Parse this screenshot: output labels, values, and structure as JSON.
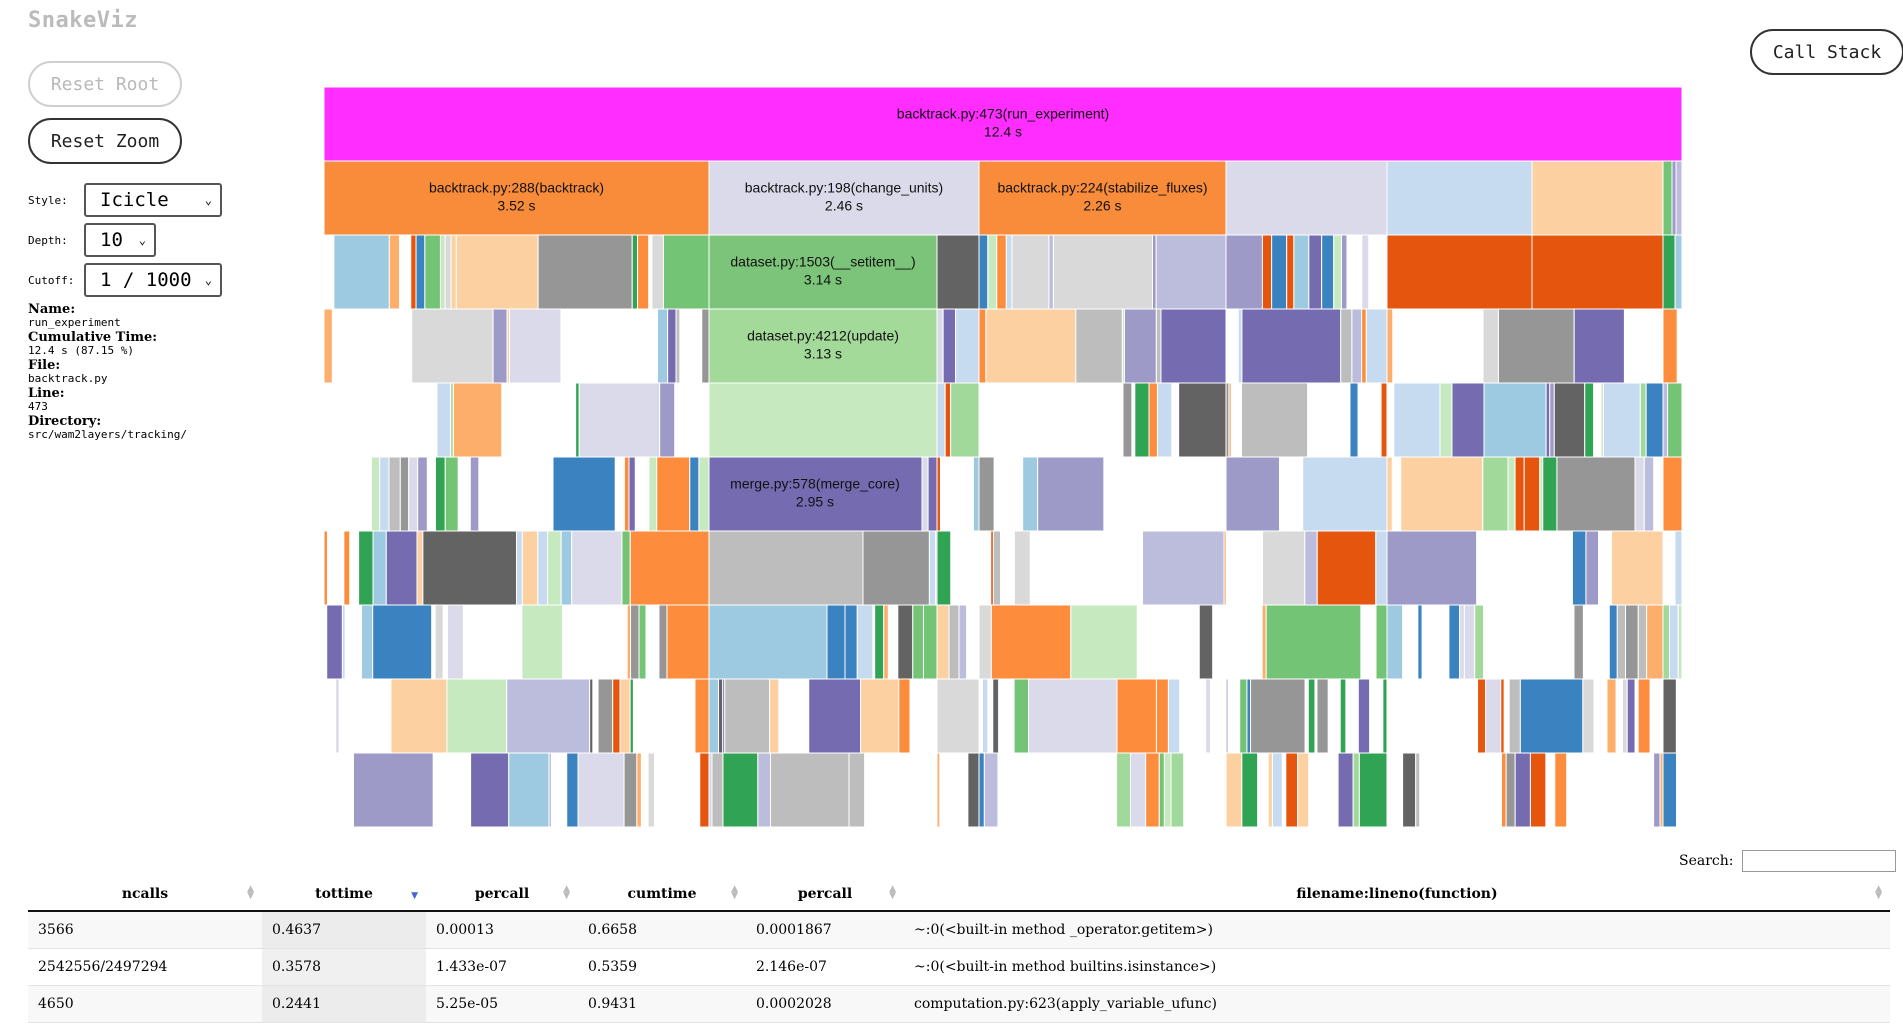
{
  "app": {
    "title": "SnakeViz"
  },
  "buttons": {
    "reset_root": "Reset Root",
    "reset_zoom": "Reset Zoom",
    "call_stack": "Call Stack"
  },
  "controls": {
    "style_label": "Style:",
    "style_value": "Icicle",
    "depth_label": "Depth:",
    "depth_value": "10",
    "cutoff_label": "Cutoff:",
    "cutoff_value": "1 / 1000"
  },
  "info": {
    "name_label": "Name:",
    "name_value": "run_experiment",
    "cumtime_label": "Cumulative Time:",
    "cumtime_value": "12.4 s (87.15 %)",
    "file_label": "File:",
    "file_value": "backtrack.py",
    "line_label": "Line:",
    "line_value": "473",
    "dir_label": "Directory:",
    "dir_value": "src/wam2layers/tracking/"
  },
  "icicle": {
    "labeled_nodes": [
      {
        "name": "backtrack.py:473(run_experiment)",
        "time": "12.4 s",
        "color": "#ff2dff"
      },
      {
        "name": "backtrack.py:288(backtrack)",
        "time": "3.52 s",
        "color": "#f98c3a"
      },
      {
        "name": "backtrack.py:198(change_units)",
        "time": "2.46 s",
        "color": "#dadaeb"
      },
      {
        "name": "backtrack.py:224(stabilize_fluxes)",
        "time": "2.26 s",
        "color": "#f98c3a"
      },
      {
        "name": "dataset.py:1503(__setitem__)",
        "time": "3.14 s",
        "color": "#7cc47a"
      },
      {
        "name": "dataset.py:4212(update)",
        "time": "3.13 s",
        "color": "#a3da99"
      },
      {
        "name": "merge.py:578(merge_core)",
        "time": "2.95 s",
        "color": "#756bb1"
      }
    ],
    "palette": [
      "#3a82c0",
      "#9ecae1",
      "#c6dbef",
      "#e6550d",
      "#fd8d3c",
      "#fdae6b",
      "#fdd0a2",
      "#31a354",
      "#74c476",
      "#a1d99b",
      "#c7e9c0",
      "#756bb1",
      "#9e9ac8",
      "#bcbddc",
      "#dadaeb",
      "#636363",
      "#969696",
      "#bdbdbd",
      "#d9d9d9"
    ]
  },
  "search": {
    "label": "Search:",
    "value": ""
  },
  "table": {
    "columns": [
      "ncalls",
      "tottime",
      "percall",
      "cumtime",
      "percall",
      "filename:lineno(function)"
    ],
    "sorted_column": "tottime",
    "rows": [
      [
        "3566",
        "0.4637",
        "0.00013",
        "0.6658",
        "0.0001867",
        "~:0(<built-in method _operator.getitem>)"
      ],
      [
        "2542556/2497294",
        "0.3578",
        "1.433e-07",
        "0.5359",
        "2.146e-07",
        "~:0(<built-in method builtins.isinstance>)"
      ],
      [
        "4650",
        "0.2441",
        "5.25e-05",
        "0.9431",
        "0.0002028",
        "computation.py:623(apply_variable_ufunc)"
      ]
    ]
  }
}
